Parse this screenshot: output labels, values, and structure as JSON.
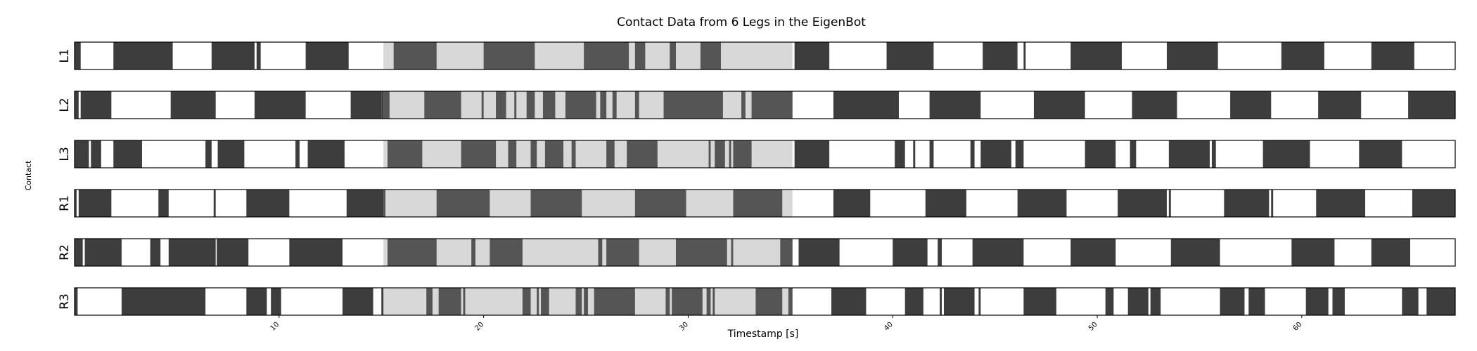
{
  "chart_data": {
    "type": "broken-bar",
    "title": "Contact Data from 6 Legs in the EigenBot",
    "xlabel": "Timestamp [s]",
    "ylabel": "Contact",
    "xlim": [
      0,
      67.5
    ],
    "xticks": [
      10,
      20,
      30,
      40,
      50,
      60
    ],
    "highlight_range": [
      15.1,
      35.1
    ],
    "colors": {
      "contact": "#3d3d3d",
      "swing": "#ffffff",
      "highlight_contact": "#555555",
      "highlight_swing": "#d8d8d8",
      "edge": "#000000"
    },
    "rows": [
      {
        "label": "L1",
        "contact": [
          [
            0,
            0.3
          ],
          [
            1.9,
            4.8
          ],
          [
            6.7,
            8.8
          ],
          [
            8.9,
            9.1
          ],
          [
            11.3,
            13.4
          ],
          [
            15.6,
            17.7
          ],
          [
            20.0,
            22.5
          ],
          [
            24.9,
            27.1
          ],
          [
            27.4,
            27.9
          ],
          [
            29.1,
            29.4
          ],
          [
            30.6,
            31.6
          ],
          [
            35.2,
            36.9
          ],
          [
            39.7,
            42.0
          ],
          [
            44.4,
            46.1
          ],
          [
            46.4,
            46.5
          ],
          [
            48.7,
            51.2
          ],
          [
            53.4,
            55.9
          ],
          [
            59.0,
            61.1
          ],
          [
            63.4,
            65.5
          ]
        ]
      },
      {
        "label": "L2",
        "contact": [
          [
            0,
            0.2
          ],
          [
            0.3,
            1.8
          ],
          [
            4.7,
            6.9
          ],
          [
            8.8,
            11.3
          ],
          [
            13.5,
            15.0
          ],
          [
            15.0,
            15.4
          ],
          [
            17.1,
            18.9
          ],
          [
            19.9,
            20.0
          ],
          [
            20.6,
            21.1
          ],
          [
            21.5,
            21.6
          ],
          [
            22.1,
            22.5
          ],
          [
            22.9,
            23.5
          ],
          [
            24.0,
            25.5
          ],
          [
            25.7,
            26.0
          ],
          [
            26.3,
            26.5
          ],
          [
            27.4,
            27.6
          ],
          [
            28.8,
            31.7
          ],
          [
            32.6,
            32.8
          ],
          [
            33.1,
            35.1
          ],
          [
            37.1,
            40.3
          ],
          [
            41.8,
            44.3
          ],
          [
            46.9,
            49.4
          ],
          [
            51.7,
            53.9
          ],
          [
            56.5,
            58.5
          ],
          [
            60.8,
            62.9
          ],
          [
            65.2,
            67.5
          ]
        ]
      },
      {
        "label": "L3",
        "contact": [
          [
            0,
            0.7
          ],
          [
            0.8,
            1.3
          ],
          [
            1.9,
            3.3
          ],
          [
            6.4,
            6.7
          ],
          [
            7.0,
            8.3
          ],
          [
            10.8,
            11.0
          ],
          [
            11.4,
            13.2
          ],
          [
            15.3,
            17.0
          ],
          [
            18.9,
            20.6
          ],
          [
            21.2,
            21.6
          ],
          [
            22.3,
            22.6
          ],
          [
            23.0,
            23.9
          ],
          [
            24.3,
            24.5
          ],
          [
            26.0,
            26.4
          ],
          [
            27.0,
            28.5
          ],
          [
            31.0,
            31.1
          ],
          [
            31.3,
            31.8
          ],
          [
            32.0,
            32.1
          ],
          [
            32.2,
            33.1
          ],
          [
            35.2,
            36.9
          ],
          [
            40.1,
            40.6
          ],
          [
            41.0,
            41.1
          ],
          [
            41.8,
            42.0
          ],
          [
            43.8,
            44.0
          ],
          [
            44.3,
            45.8
          ],
          [
            46.0,
            46.4
          ],
          [
            49.4,
            50.9
          ],
          [
            51.6,
            51.9
          ],
          [
            53.5,
            55.5
          ],
          [
            55.6,
            55.8
          ],
          [
            58.1,
            60.4
          ],
          [
            62.8,
            64.9
          ]
        ]
      },
      {
        "label": "R1",
        "contact": [
          [
            0,
            0.1
          ],
          [
            0.2,
            1.8
          ],
          [
            4.1,
            4.6
          ],
          [
            6.8,
            6.9
          ],
          [
            8.4,
            10.5
          ],
          [
            13.3,
            15.2
          ],
          [
            17.7,
            20.3
          ],
          [
            22.3,
            24.8
          ],
          [
            27.4,
            29.9
          ],
          [
            32.2,
            34.6
          ],
          [
            37.1,
            38.9
          ],
          [
            41.6,
            43.6
          ],
          [
            46.1,
            48.5
          ],
          [
            51.0,
            53.4
          ],
          [
            53.5,
            53.6
          ],
          [
            56.2,
            58.4
          ],
          [
            58.5,
            58.6
          ],
          [
            60.7,
            63.1
          ],
          [
            65.4,
            67.5
          ]
        ]
      },
      {
        "label": "R2",
        "contact": [
          [
            0,
            0.4
          ],
          [
            0.5,
            2.3
          ],
          [
            3.7,
            4.2
          ],
          [
            4.6,
            6.9
          ],
          [
            6.95,
            8.5
          ],
          [
            10.5,
            13.1
          ],
          [
            15.3,
            17.7
          ],
          [
            19.4,
            19.6
          ],
          [
            20.3,
            21.9
          ],
          [
            25.6,
            25.8
          ],
          [
            26.0,
            27.6
          ],
          [
            29.4,
            31.9
          ],
          [
            32.1,
            32.2
          ],
          [
            34.5,
            35.1
          ],
          [
            35.4,
            37.4
          ],
          [
            40.0,
            41.7
          ],
          [
            42.2,
            42.4
          ],
          [
            43.9,
            46.4
          ],
          [
            48.7,
            50.9
          ],
          [
            53.6,
            56.0
          ],
          [
            59.5,
            61.6
          ],
          [
            63.4,
            65.3
          ]
        ]
      },
      {
        "label": "R3",
        "contact": [
          [
            0,
            0.15
          ],
          [
            2.3,
            6.4
          ],
          [
            8.4,
            9.4
          ],
          [
            9.6,
            10.1
          ],
          [
            13.1,
            14.6
          ],
          [
            15.0,
            15.1
          ],
          [
            17.2,
            17.5
          ],
          [
            17.8,
            18.9
          ],
          [
            19.0,
            19.1
          ],
          [
            21.9,
            22.3
          ],
          [
            22.6,
            22.7
          ],
          [
            22.8,
            23.2
          ],
          [
            24.5,
            24.8
          ],
          [
            24.9,
            25.1
          ],
          [
            25.4,
            27.4
          ],
          [
            28.9,
            29.1
          ],
          [
            29.2,
            30.7
          ],
          [
            30.9,
            31.1
          ],
          [
            31.2,
            31.3
          ],
          [
            33.3,
            34.6
          ],
          [
            34.9,
            35.1
          ],
          [
            37.0,
            38.7
          ],
          [
            40.6,
            41.5
          ],
          [
            42.3,
            42.4
          ],
          [
            42.5,
            44.0
          ],
          [
            44.2,
            44.3
          ],
          [
            46.4,
            48.0
          ],
          [
            50.4,
            50.8
          ],
          [
            51.5,
            52.5
          ],
          [
            52.6,
            53.1
          ],
          [
            56.0,
            57.2
          ],
          [
            57.4,
            58.2
          ],
          [
            60.2,
            61.3
          ],
          [
            61.5,
            62.1
          ],
          [
            64.9,
            65.7
          ],
          [
            66.1,
            67.5
          ]
        ]
      }
    ]
  }
}
